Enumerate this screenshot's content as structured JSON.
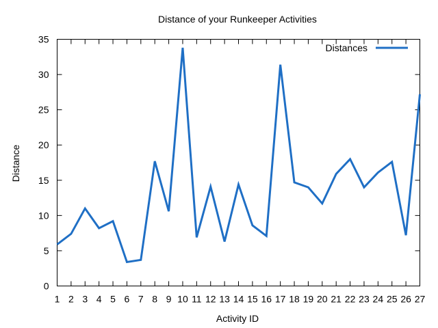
{
  "chart_data": {
    "type": "line",
    "title": "Distance of your Runkeeper Activities",
    "xlabel": "Activity ID",
    "ylabel": "Distance",
    "xlim": [
      1,
      27
    ],
    "ylim": [
      0,
      35
    ],
    "x_ticks": [
      1,
      2,
      3,
      4,
      5,
      6,
      7,
      8,
      9,
      10,
      11,
      12,
      13,
      14,
      15,
      16,
      17,
      18,
      19,
      20,
      21,
      22,
      23,
      24,
      25,
      26,
      27
    ],
    "y_ticks": [
      0,
      5,
      10,
      15,
      20,
      25,
      30,
      35
    ],
    "grid": false,
    "legend_position": "top-right",
    "series": [
      {
        "name": "Distances",
        "color": "#1f6fc5",
        "x": [
          1,
          2,
          3,
          4,
          5,
          6,
          7,
          8,
          9,
          10,
          11,
          12,
          13,
          14,
          15,
          16,
          17,
          18,
          19,
          20,
          21,
          22,
          23,
          24,
          25,
          26,
          27
        ],
        "values": [
          5.9,
          7.4,
          11.0,
          8.2,
          9.2,
          3.4,
          3.7,
          17.7,
          10.6,
          33.8,
          6.9,
          14.1,
          6.3,
          14.4,
          8.6,
          7.1,
          31.4,
          14.7,
          14.0,
          11.7,
          15.9,
          18.0,
          14.0,
          16.1,
          17.6,
          7.2,
          27.2
        ]
      }
    ]
  }
}
